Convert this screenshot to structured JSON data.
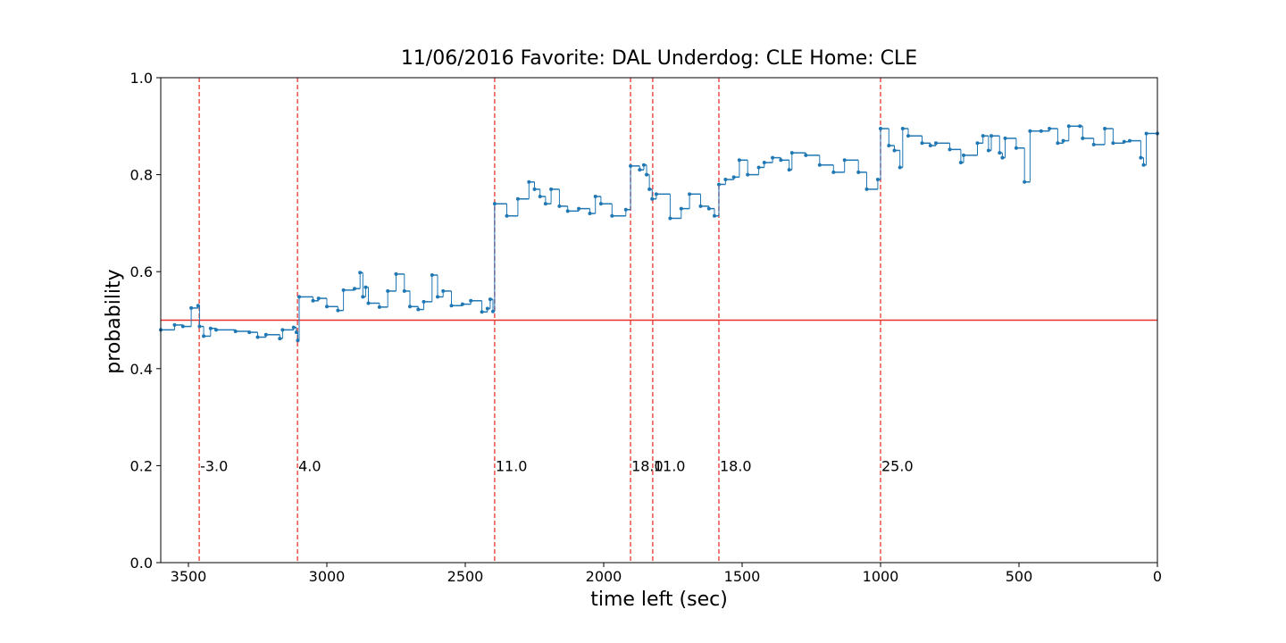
{
  "chart_data": {
    "type": "line",
    "step": "post",
    "title": "11/06/2016 Favorite: DAL Underdog: CLE Home: CLE",
    "xlabel": "time left (sec)",
    "ylabel": "probability",
    "xlim": [
      3600,
      0
    ],
    "ylim": [
      0.0,
      1.0
    ],
    "xticks": [
      3500,
      3000,
      2500,
      2000,
      1500,
      1000,
      500,
      0
    ],
    "yticks": [
      {
        "value": 0,
        "label": "0.0"
      },
      0.2,
      0.4,
      0.6,
      0.8,
      {
        "value": 1,
        "label": "1.0"
      }
    ],
    "hline": {
      "value": 0.5,
      "color": "#e8302a"
    },
    "vlines": {
      "color": "#f0504a",
      "annotation_y": 0.2,
      "x": [
        3461,
        3106,
        2394,
        1903,
        1823,
        1584,
        1000
      ],
      "labels": [
        "-3.0",
        "4.0",
        "11.0",
        "18.0",
        "11.0",
        "18.0",
        "25.0"
      ]
    },
    "series": [
      {
        "color": "#1f77b4",
        "x": [
          3600,
          3550,
          3520,
          3490,
          3465,
          3460,
          3445,
          3420,
          3400,
          3330,
          3280,
          3250,
          3220,
          3170,
          3160,
          3120,
          3110,
          3105,
          3100,
          3050,
          3030,
          3000,
          2960,
          2940,
          2900,
          2880,
          2870,
          2860,
          2850,
          2810,
          2780,
          2750,
          2720,
          2700,
          2670,
          2650,
          2620,
          2600,
          2580,
          2550,
          2510,
          2480,
          2440,
          2420,
          2410,
          2400,
          2394,
          2350,
          2310,
          2270,
          2250,
          2230,
          2210,
          2190,
          2160,
          2130,
          2090,
          2050,
          2030,
          2010,
          1970,
          1920,
          1903,
          1870,
          1855,
          1845,
          1835,
          1825,
          1810,
          1760,
          1720,
          1690,
          1650,
          1620,
          1600,
          1584,
          1560,
          1530,
          1510,
          1480,
          1440,
          1420,
          1390,
          1360,
          1330,
          1320,
          1270,
          1220,
          1170,
          1130,
          1080,
          1050,
          1010,
          1000,
          970,
          950,
          930,
          920,
          900,
          850,
          820,
          800,
          750,
          710,
          700,
          650,
          630,
          610,
          600,
          570,
          560,
          550,
          510,
          480,
          460,
          420,
          390,
          360,
          340,
          320,
          280,
          270,
          230,
          190,
          160,
          120,
          100,
          60,
          50,
          40,
          0
        ],
        "values": [
          0.48,
          0.49,
          0.487,
          0.525,
          0.53,
          0.487,
          0.467,
          0.483,
          0.48,
          0.477,
          0.475,
          0.465,
          0.47,
          0.462,
          0.48,
          0.485,
          0.475,
          0.458,
          0.548,
          0.54,
          0.545,
          0.528,
          0.52,
          0.562,
          0.565,
          0.598,
          0.548,
          0.568,
          0.535,
          0.527,
          0.56,
          0.595,
          0.56,
          0.528,
          0.522,
          0.538,
          0.593,
          0.548,
          0.56,
          0.53,
          0.533,
          0.54,
          0.517,
          0.524,
          0.543,
          0.518,
          0.74,
          0.715,
          0.75,
          0.785,
          0.77,
          0.755,
          0.74,
          0.77,
          0.735,
          0.725,
          0.73,
          0.72,
          0.755,
          0.74,
          0.715,
          0.728,
          0.818,
          0.81,
          0.82,
          0.8,
          0.77,
          0.75,
          0.76,
          0.71,
          0.73,
          0.76,
          0.735,
          0.73,
          0.715,
          0.78,
          0.79,
          0.795,
          0.83,
          0.8,
          0.815,
          0.825,
          0.835,
          0.83,
          0.81,
          0.845,
          0.84,
          0.82,
          0.805,
          0.83,
          0.805,
          0.77,
          0.79,
          0.895,
          0.86,
          0.85,
          0.815,
          0.895,
          0.88,
          0.865,
          0.86,
          0.865,
          0.852,
          0.825,
          0.84,
          0.865,
          0.88,
          0.85,
          0.88,
          0.845,
          0.835,
          0.875,
          0.855,
          0.785,
          0.89,
          0.89,
          0.895,
          0.865,
          0.87,
          0.9,
          0.9,
          0.875,
          0.862,
          0.895,
          0.865,
          0.868,
          0.87,
          0.835,
          0.82,
          0.885,
          0.885
        ]
      }
    ]
  }
}
